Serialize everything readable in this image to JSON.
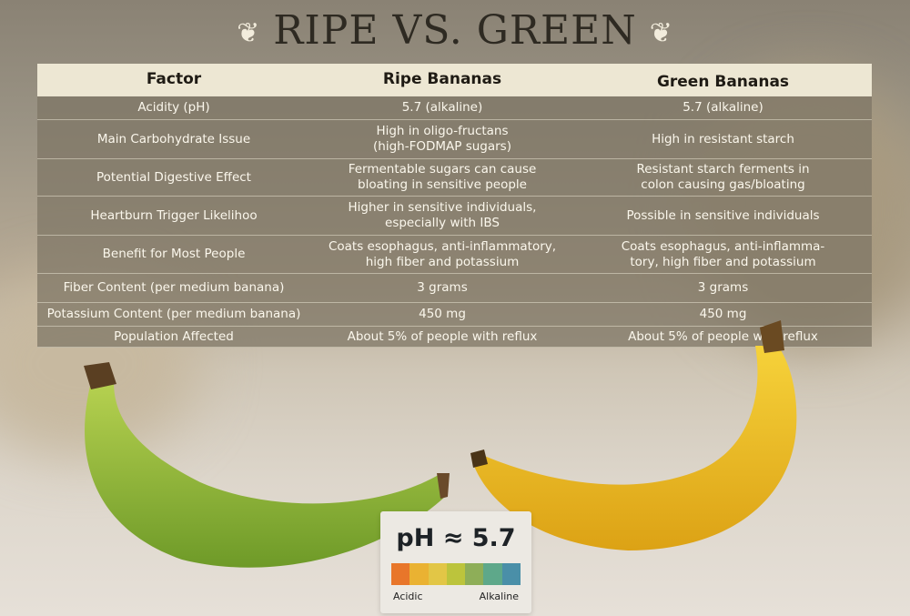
{
  "title": "RIPE VS. GREEN",
  "decor_icon": "hummingbird-icon",
  "table": {
    "headers": [
      "Factor",
      "Ripe Bananas",
      "Green Bananas"
    ],
    "rows": [
      [
        "Acidity (pH)",
        "5.7 (alkaline)",
        "5.7 (alkaline)"
      ],
      [
        "Main Carbohydrate Issue",
        "High in oligo-fructans\n(high-FODMAP sugars)",
        "High in resistant starch"
      ],
      [
        "Potential Digestive Effect",
        "Fermentable sugars can cause\nbloating  in sensitive people",
        "Resistant starch ferments in\ncolon causing gas/bloating"
      ],
      [
        "Heartburn Trigger Likelihoo",
        "Higher in sensitive individuals,\nespecially with IBS",
        "Possible in sensitive individuals"
      ],
      [
        "Benefit for Most People",
        "Coats esophagus, anti-inflammatory,\nhigh fiber and potassium",
        "Coats esophagus, anti-inflamma-\ntory, high fiber and potassium"
      ],
      [
        "Fiber Content (per medium banana)",
        "3 grams",
        "3 grams"
      ],
      [
        "Potassium Content (per medium banana)",
        "450 mg",
        "450 mg"
      ],
      [
        "Population Affected",
        "About 5% of people with reflux",
        "About 5% of people with reflux"
      ]
    ]
  },
  "ph_card": {
    "value": "pH ≈ 5.7",
    "left_label": "Acidic",
    "right_label": "Alkaline",
    "scale_colors": [
      "#e8762a",
      "#eab232",
      "#e2c646",
      "#bcc43c",
      "#8eae58",
      "#5ea88a",
      "#4a8fa8"
    ]
  }
}
